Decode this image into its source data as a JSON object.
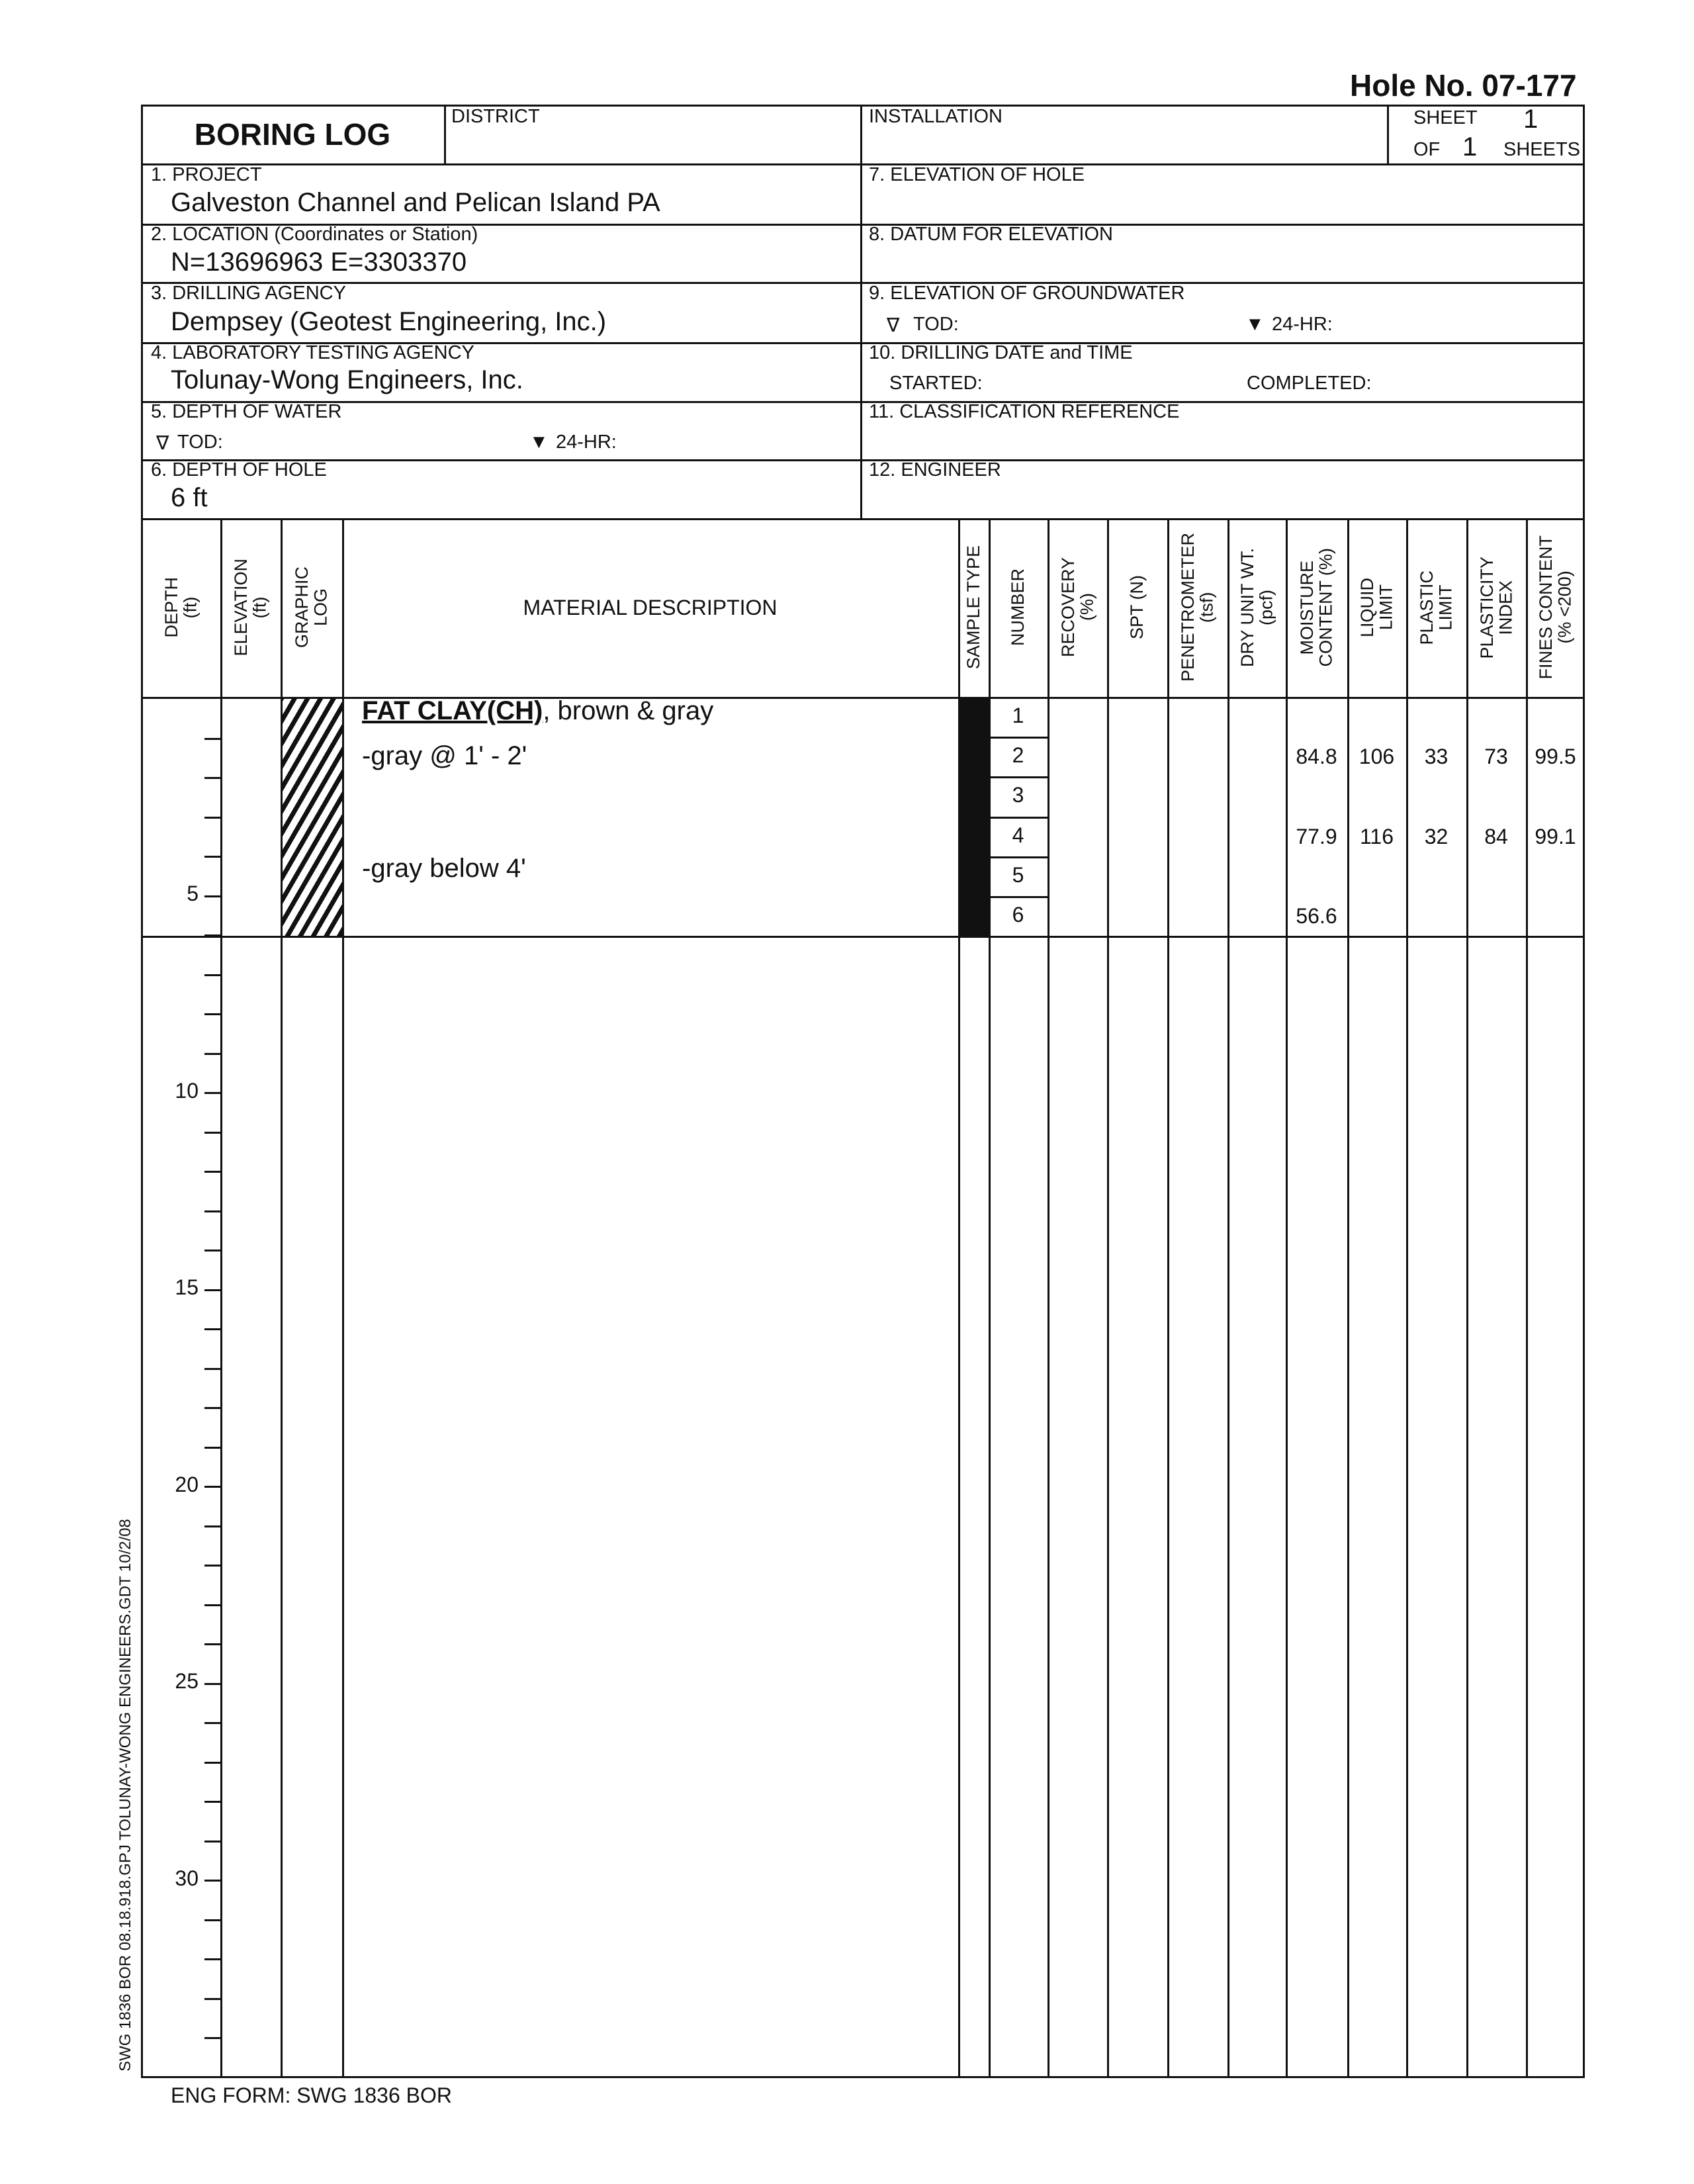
{
  "hole_no": "Hole No.  07-177",
  "title": "BORING LOG",
  "district_label": "DISTRICT",
  "installation_label": "INSTALLATION",
  "sheet": {
    "sheet_label": "SHEET",
    "sheet_no": "1",
    "of_label": "OF",
    "of_no": "1",
    "sheets_label": "SHEETS"
  },
  "fields": {
    "project": {
      "label": "1. PROJECT",
      "value": "Galveston Channel and Pelican Island PA"
    },
    "location": {
      "label": "2. LOCATION (Coordinates or Station)",
      "value": "N=13696963  E=3303370"
    },
    "drilling_agency": {
      "label": "3. DRILLING AGENCY",
      "value": "Dempsey (Geotest Engineering, Inc.)"
    },
    "lab_agency": {
      "label": "4. LABORATORY TESTING AGENCY",
      "value": "Tolunay-Wong Engineers, Inc."
    },
    "depth_water": {
      "label": "5. DEPTH OF WATER",
      "tod": "TOD:",
      "hr24": "24-HR:"
    },
    "depth_hole": {
      "label": "6. DEPTH OF HOLE",
      "value": "6 ft"
    },
    "elev_hole": {
      "label": "7. ELEVATION OF HOLE"
    },
    "datum": {
      "label": "8. DATUM FOR ELEVATION"
    },
    "elev_gw": {
      "label": "9. ELEVATION OF GROUNDWATER",
      "tod": "TOD:",
      "hr24": "24-HR:"
    },
    "drill_date": {
      "label": "10. DRILLING DATE and TIME",
      "started": "STARTED:",
      "completed": "COMPLETED:"
    },
    "classification": {
      "label": "11. CLASSIFICATION REFERENCE"
    },
    "engineer": {
      "label": "12. ENGINEER"
    }
  },
  "columns": [
    "DEPTH\n(ft)",
    "ELEVATION\n(ft)",
    "GRAPHIC\nLOG",
    "MATERIAL DESCRIPTION",
    "SAMPLE TYPE",
    "NUMBER",
    "RECOVERY\n(%)",
    "SPT (N)",
    "PENETROMETER\n(tsf)",
    "DRY UNIT WT.\n(pcf)",
    "MOISTURE\nCONTENT (%)",
    "LIQUID\nLIMIT",
    "PLASTIC\nLIMIT",
    "PLASTICITY\nINDEX",
    "FINES CONTENT\n(% <200)"
  ],
  "description": {
    "title": "FAT CLAY(CH)",
    "title_rest": ", brown & gray",
    "line2": "-gray @ 1' - 2'",
    "line3": "-gray below 4'"
  },
  "samples": [
    {
      "number": "1",
      "moisture": "",
      "ll": "",
      "pl": "",
      "pi": "",
      "fines": ""
    },
    {
      "number": "2",
      "moisture": "84.8",
      "ll": "106",
      "pl": "33",
      "pi": "73",
      "fines": "99.5"
    },
    {
      "number": "3",
      "moisture": "",
      "ll": "",
      "pl": "",
      "pi": "",
      "fines": ""
    },
    {
      "number": "4",
      "moisture": "77.9",
      "ll": "116",
      "pl": "32",
      "pi": "84",
      "fines": "99.1"
    },
    {
      "number": "5",
      "moisture": "",
      "ll": "",
      "pl": "",
      "pi": "",
      "fines": ""
    },
    {
      "number": "6",
      "moisture": "56.6",
      "ll": "",
      "pl": "",
      "pi": "",
      "fines": ""
    }
  ],
  "depth_labels": [
    "5",
    "10",
    "15",
    "20",
    "25",
    "30"
  ],
  "side_text": "SWG 1836 BOR  08.18.918.GPJ  TOLUNAY-WONG ENGINEERS.GDT  10/2/08",
  "footer": "ENG FORM: SWG 1836 BOR",
  "colors": {
    "ink": "#111111",
    "paper": "#ffffff"
  }
}
